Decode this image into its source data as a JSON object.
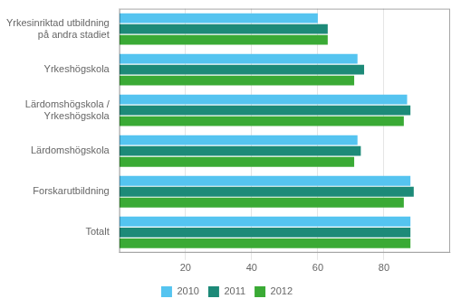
{
  "chart_data": {
    "type": "bar",
    "orientation": "horizontal",
    "categories": [
      "Yrkesinriktad utbildning\npå andra stadiet",
      "Yrkeshögskola",
      "Lärdomshögskola /\nYrkeshögskola",
      "Lärdomshögskola",
      "Forskarutbildning",
      "Totalt"
    ],
    "series": [
      {
        "name": "2010",
        "color": "#55C4F0",
        "values": [
          60,
          72,
          87,
          72,
          88,
          88
        ]
      },
      {
        "name": "2011",
        "color": "#1D8A78",
        "values": [
          63,
          74,
          88,
          73,
          89,
          88
        ]
      },
      {
        "name": "2012",
        "color": "#3AAA35",
        "values": [
          63,
          71,
          86,
          71,
          86,
          88
        ]
      }
    ],
    "xlim": [
      0,
      100
    ],
    "xticks": [
      20,
      40,
      60,
      80
    ],
    "grid": true,
    "legend": "bottom"
  }
}
